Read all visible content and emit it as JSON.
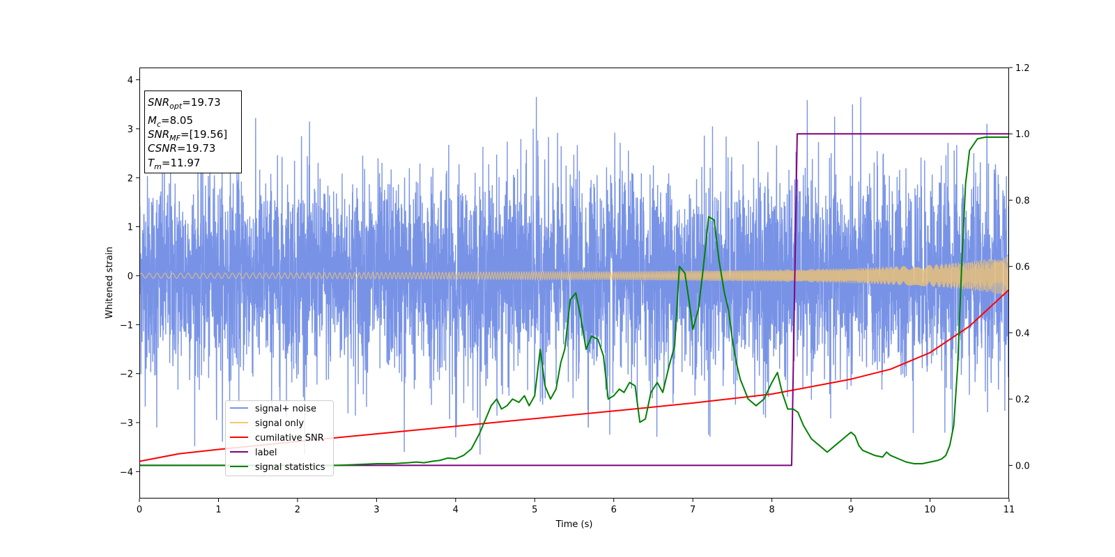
{
  "chart_data": {
    "type": "line",
    "xlabel": "Time (s)",
    "ylabel": "Whitened strain",
    "xlim": [
      0,
      11
    ],
    "ylim": [
      -4.55,
      4.25
    ],
    "y2lim": [
      -0.1,
      1.2
    ],
    "x_ticks": [
      "0",
      "1",
      "2",
      "3",
      "4",
      "5",
      "6",
      "7",
      "8",
      "9",
      "10",
      "11"
    ],
    "y_ticks": [
      "4",
      "3",
      "2",
      "1",
      "0",
      "−1",
      "−2",
      "−3",
      "−4"
    ],
    "y2_ticks": [
      "1.2",
      "1.0",
      "0.8",
      "0.6",
      "0.4",
      "0.2",
      "0.0"
    ],
    "grid": false,
    "legend_position": "lower-left",
    "annotation": {
      "snr_opt": {
        "symbol": "SNR",
        "sub": "opt",
        "value": "=19.73"
      },
      "mc": {
        "symbol": "M",
        "sub": "c",
        "value": "=8.05"
      },
      "snr_mf": {
        "symbol": "SNR",
        "sub": "MF",
        "value": "=[19.56]"
      },
      "csnr": {
        "symbol": "CSNR",
        "value": "=19.73"
      },
      "tm": {
        "symbol": "T",
        "sub": "m",
        "value": "=11.97"
      }
    },
    "series": [
      {
        "name": "signal+ noise",
        "axis": "left",
        "color": "#7893e6",
        "noise_sigma": 1.0,
        "max_abs": 3.65,
        "peak_points": [
          [
            5.02,
            3.65
          ],
          [
            9.02,
            3.5
          ],
          [
            10.72,
            3.1
          ],
          [
            4.98,
            3.0
          ],
          [
            2.05,
            2.85
          ],
          [
            7.25,
            3.05
          ],
          [
            3.35,
            -3.6
          ],
          [
            0.22,
            -3.1
          ],
          [
            4.0,
            -3.3
          ],
          [
            7.2,
            -3.25
          ],
          [
            5.95,
            -3.25
          ],
          [
            5.68,
            -3.1
          ]
        ]
      },
      {
        "name": "signal only",
        "axis": "left",
        "color": "#f7c56b",
        "envelope_x": [
          0,
          2,
          4,
          6,
          8,
          9,
          10,
          10.5,
          11
        ],
        "envelope_amp": [
          0.05,
          0.058,
          0.07,
          0.085,
          0.12,
          0.15,
          0.22,
          0.29,
          0.4
        ]
      },
      {
        "name": "cumilative SNR",
        "axis": "right",
        "color": "#ff0000",
        "x": [
          0,
          0.5,
          1,
          2,
          3,
          4,
          5,
          6,
          7,
          8,
          9,
          9.5,
          10,
          10.5,
          11
        ],
        "y": [
          0.012,
          0.035,
          0.048,
          0.072,
          0.095,
          0.118,
          0.141,
          0.164,
          0.188,
          0.215,
          0.26,
          0.29,
          0.34,
          0.42,
          0.53
        ]
      },
      {
        "name": "label",
        "axis": "right",
        "color": "#800080",
        "x": [
          0,
          8.25,
          8.32,
          11
        ],
        "y": [
          0.0,
          0.0,
          1.0,
          1.0
        ]
      },
      {
        "name": "signal statistics",
        "axis": "right",
        "color": "#008000",
        "x": [
          0,
          0.5,
          1,
          1.5,
          2,
          2.5,
          3,
          3.2,
          3.4,
          3.5,
          3.6,
          3.7,
          3.8,
          3.9,
          4.0,
          4.1,
          4.2,
          4.3,
          4.38,
          4.45,
          4.52,
          4.58,
          4.65,
          4.72,
          4.8,
          4.87,
          4.93,
          5.0,
          5.07,
          5.13,
          5.2,
          5.27,
          5.33,
          5.38,
          5.45,
          5.52,
          5.58,
          5.65,
          5.72,
          5.8,
          5.87,
          5.93,
          6.0,
          6.07,
          6.13,
          6.2,
          6.27,
          6.33,
          6.4,
          6.47,
          6.55,
          6.62,
          6.7,
          6.77,
          6.83,
          6.9,
          6.95,
          7.0,
          7.07,
          7.13,
          7.2,
          7.27,
          7.33,
          7.4,
          7.45,
          7.5,
          7.55,
          7.6,
          7.7,
          7.8,
          7.9,
          8.0,
          8.07,
          8.13,
          8.2,
          8.27,
          8.33,
          8.4,
          8.5,
          8.6,
          8.7,
          8.8,
          8.9,
          9.0,
          9.05,
          9.1,
          9.15,
          9.2,
          9.3,
          9.4,
          9.45,
          9.5,
          9.6,
          9.7,
          9.8,
          9.9,
          10.0,
          10.1,
          10.15,
          10.2,
          10.25,
          10.3,
          10.35,
          10.4,
          10.45,
          10.5,
          10.6,
          10.7,
          10.8,
          10.9,
          11.0
        ],
        "y": [
          0.0,
          0.0,
          0.0,
          0.0,
          0.0,
          0.0,
          0.005,
          0.005,
          0.008,
          0.01,
          0.008,
          0.012,
          0.015,
          0.022,
          0.02,
          0.03,
          0.05,
          0.095,
          0.14,
          0.18,
          0.2,
          0.17,
          0.18,
          0.2,
          0.19,
          0.21,
          0.18,
          0.21,
          0.35,
          0.24,
          0.2,
          0.23,
          0.31,
          0.35,
          0.5,
          0.52,
          0.45,
          0.35,
          0.39,
          0.38,
          0.33,
          0.2,
          0.21,
          0.23,
          0.22,
          0.25,
          0.24,
          0.13,
          0.14,
          0.22,
          0.25,
          0.22,
          0.3,
          0.36,
          0.6,
          0.58,
          0.5,
          0.41,
          0.47,
          0.59,
          0.75,
          0.74,
          0.62,
          0.52,
          0.47,
          0.38,
          0.31,
          0.26,
          0.2,
          0.18,
          0.2,
          0.25,
          0.28,
          0.22,
          0.17,
          0.17,
          0.16,
          0.12,
          0.08,
          0.06,
          0.04,
          0.06,
          0.08,
          0.1,
          0.09,
          0.06,
          0.045,
          0.04,
          0.03,
          0.025,
          0.04,
          0.03,
          0.02,
          0.01,
          0.005,
          0.005,
          0.01,
          0.015,
          0.02,
          0.03,
          0.06,
          0.12,
          0.3,
          0.6,
          0.85,
          0.95,
          0.985,
          0.99,
          0.99,
          0.99,
          0.99
        ]
      }
    ]
  }
}
